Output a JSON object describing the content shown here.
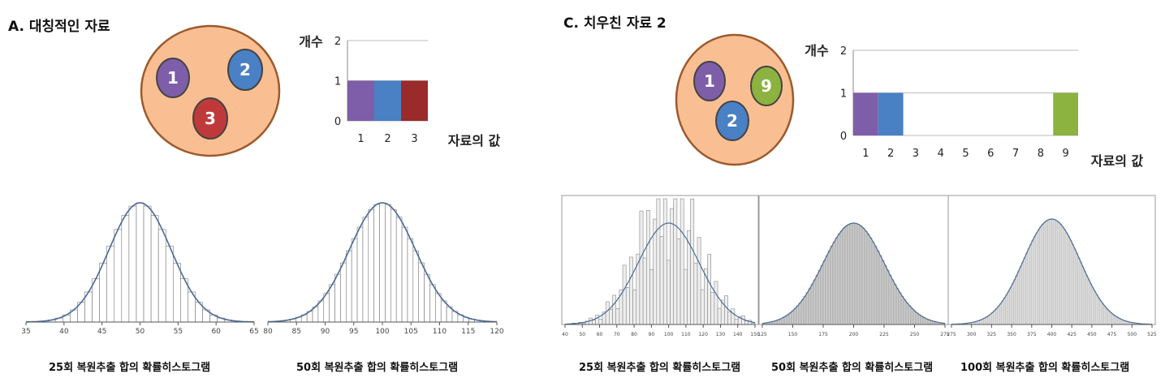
{
  "panels": {
    "A": {
      "title": "A. 대칭적인 자료"
    },
    "C": {
      "title": "C. 치우친 자료 2"
    }
  },
  "colors": {
    "urn_fill": "#f9bf92",
    "urn_stroke": "#9c5a2c",
    "ball_1": "#7e5ea8",
    "ball_2": "#4a80c4",
    "ball_3": "#c0393a",
    "ball_9": "#8cb23f",
    "bar_3": "#9b2a2a",
    "curve": "#4a6a96"
  },
  "balls": {
    "A": [
      "1",
      "2",
      "3"
    ],
    "C": [
      "1",
      "2",
      "9"
    ]
  },
  "chart_data": [
    {
      "id": "A-freq",
      "type": "bar",
      "categories": [
        "1",
        "2",
        "3"
      ],
      "values": [
        1,
        1,
        1
      ],
      "ylabel": "개수",
      "xlabel": "자료의 값",
      "ylim": [
        0,
        2
      ],
      "yticks": [
        0,
        1,
        2
      ],
      "grid": true
    },
    {
      "id": "C-freq",
      "type": "bar",
      "categories": [
        "1",
        "2",
        "3",
        "4",
        "5",
        "6",
        "7",
        "8",
        "9"
      ],
      "values": [
        1,
        1,
        0,
        0,
        0,
        0,
        0,
        0,
        1
      ],
      "ylabel": "개수",
      "xlabel": "자료의 값",
      "ylim": [
        0,
        2
      ],
      "yticks": [
        0,
        1,
        2
      ],
      "grid": true
    },
    {
      "id": "A-hist25",
      "type": "bar",
      "caption": "25회 복원추출 합의 확률히스토그램",
      "xlim": [
        35,
        65
      ],
      "xticks": [
        35,
        40,
        45,
        50,
        55,
        60,
        65
      ],
      "mean": 50,
      "sd": 4.08
    },
    {
      "id": "A-hist50",
      "type": "bar",
      "caption": "50회 복원추출 합의 확률히스토그램",
      "xlim": [
        80,
        120
      ],
      "xticks": [
        80,
        85,
        90,
        95,
        100,
        105,
        110,
        115,
        120
      ],
      "mean": 100,
      "sd": 5.77
    },
    {
      "id": "C-hist25",
      "type": "bar",
      "caption": "25회 복원추출 합의 확률히스토그램",
      "xlim": [
        40,
        150
      ],
      "xticks": [
        40,
        50,
        60,
        70,
        80,
        90,
        100,
        110,
        120,
        130,
        140,
        150
      ],
      "mean": 100,
      "sd": 17.7
    },
    {
      "id": "C-hist50",
      "type": "bar",
      "caption": "50회 복원추출 합의 확률히스토그램",
      "xlim": [
        125,
        275
      ],
      "xticks": [
        125,
        150,
        175,
        200,
        225,
        250,
        275
      ],
      "mean": 200,
      "sd": 25.0
    },
    {
      "id": "C-hist100",
      "type": "bar",
      "caption": "100회 복원추출 합의 확률히스토그램",
      "xlim": [
        275,
        525
      ],
      "xticks": [
        275,
        300,
        325,
        350,
        375,
        400,
        425,
        450,
        475,
        500,
        525
      ],
      "mean": 400,
      "sd": 35.4
    }
  ]
}
